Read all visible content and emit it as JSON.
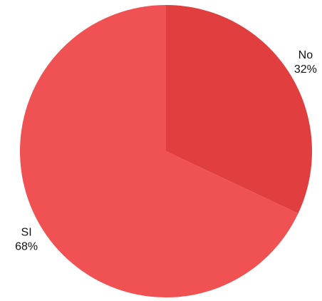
{
  "chart_data": {
    "type": "pie",
    "categories": [
      "No",
      "SI"
    ],
    "values": [
      32,
      68
    ],
    "value_labels": [
      "32%",
      "68%"
    ],
    "colors": [
      "#e03e3f",
      "#f05153"
    ]
  }
}
